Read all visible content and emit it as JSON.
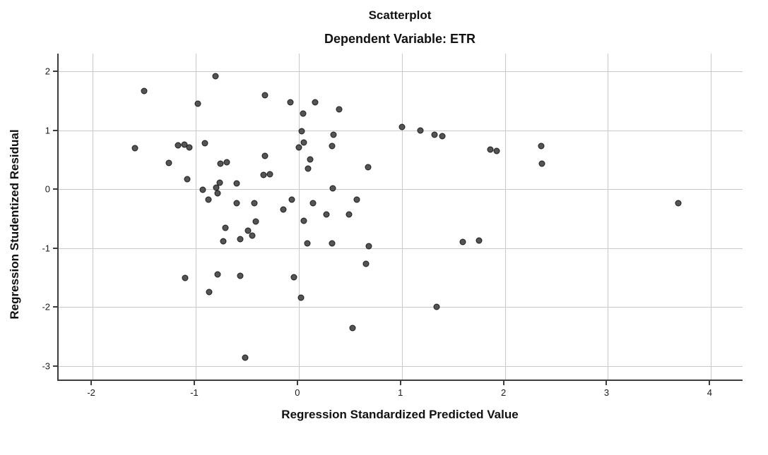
{
  "chart": {
    "title": "Scatterplot",
    "subtitle": "Dependent Variable: ETR",
    "x_axis_label": "Regression Standardized Predicted Value",
    "y_axis_label": "Regression Studentized Residual"
  },
  "chart_data": {
    "type": "scatter",
    "title": "Scatterplot",
    "subtitle": "Dependent Variable: ETR",
    "xlabel": "Regression Standardized Predicted Value",
    "ylabel": "Regression Studentized Residual",
    "xlim": [
      -2.33,
      4.32
    ],
    "ylim": [
      -3.25,
      2.3
    ],
    "x_ticks": [
      -2,
      -1,
      0,
      1,
      2,
      3,
      4
    ],
    "y_ticks": [
      2,
      1,
      0,
      -1,
      -2,
      -3
    ],
    "grid": true,
    "legend": "none",
    "point_fill_color": "#545454",
    "point_border_color": "#1c1c1c",
    "gridline_color": "#c9c9c9",
    "axis_color": "#3d3d3d",
    "background_color": "#ffffff",
    "points": [
      [
        -1.5,
        1.67
      ],
      [
        -1.59,
        0.7
      ],
      [
        -1.26,
        0.45
      ],
      [
        -1.17,
        0.74
      ],
      [
        -1.11,
        0.76
      ],
      [
        -1.06,
        0.71
      ],
      [
        -1.08,
        0.17
      ],
      [
        -0.98,
        1.45
      ],
      [
        -0.91,
        0.78
      ],
      [
        -0.81,
        1.92
      ],
      [
        -0.76,
        0.44
      ],
      [
        -0.7,
        0.46
      ],
      [
        -0.93,
        -0.01
      ],
      [
        -0.8,
        0.03
      ],
      [
        -0.79,
        -0.07
      ],
      [
        -0.77,
        0.11
      ],
      [
        -0.88,
        -0.17
      ],
      [
        -0.71,
        -0.66
      ],
      [
        -0.73,
        -0.88
      ],
      [
        -1.1,
        -1.5
      ],
      [
        -0.79,
        -1.44
      ],
      [
        -0.87,
        -1.74
      ],
      [
        -0.6,
        0.1
      ],
      [
        -0.6,
        -0.24
      ],
      [
        -0.57,
        -0.85
      ],
      [
        -0.57,
        -1.47
      ],
      [
        -0.52,
        -2.86
      ],
      [
        -0.49,
        -0.7
      ],
      [
        -0.45,
        -0.79
      ],
      [
        -0.43,
        -0.24
      ],
      [
        -0.42,
        -0.55
      ],
      [
        -0.33,
        1.59
      ],
      [
        -0.33,
        0.57
      ],
      [
        -0.34,
        0.24
      ],
      [
        -0.28,
        0.25
      ],
      [
        -0.15,
        -0.34
      ],
      [
        -0.08,
        1.47
      ],
      [
        -0.07,
        -0.18
      ],
      [
        -0.05,
        -1.49
      ],
      [
        0.02,
        -1.84
      ],
      [
        0.04,
        1.28
      ],
      [
        0.03,
        0.98
      ],
      [
        0.05,
        0.79
      ],
      [
        0.0,
        0.71
      ],
      [
        0.05,
        -0.54
      ],
      [
        0.08,
        -0.92
      ],
      [
        0.11,
        0.51
      ],
      [
        0.09,
        0.35
      ],
      [
        0.14,
        -0.23
      ],
      [
        0.16,
        1.47
      ],
      [
        0.27,
        -0.43
      ],
      [
        0.32,
        0.73
      ],
      [
        0.34,
        0.93
      ],
      [
        0.32,
        -0.92
      ],
      [
        0.33,
        0.01
      ],
      [
        0.39,
        1.36
      ],
      [
        0.49,
        -0.43
      ],
      [
        0.52,
        -2.35
      ],
      [
        0.56,
        -0.17
      ],
      [
        0.65,
        -1.27
      ],
      [
        0.67,
        0.37
      ],
      [
        0.68,
        -0.97
      ],
      [
        1.0,
        1.06
      ],
      [
        1.18,
        1.0
      ],
      [
        1.32,
        0.93
      ],
      [
        1.39,
        0.9
      ],
      [
        1.34,
        -1.99
      ],
      [
        1.59,
        -0.89
      ],
      [
        1.75,
        -0.87
      ],
      [
        1.86,
        0.67
      ],
      [
        1.92,
        0.65
      ],
      [
        2.35,
        0.73
      ],
      [
        2.36,
        0.44
      ],
      [
        3.68,
        -0.24
      ]
    ]
  }
}
